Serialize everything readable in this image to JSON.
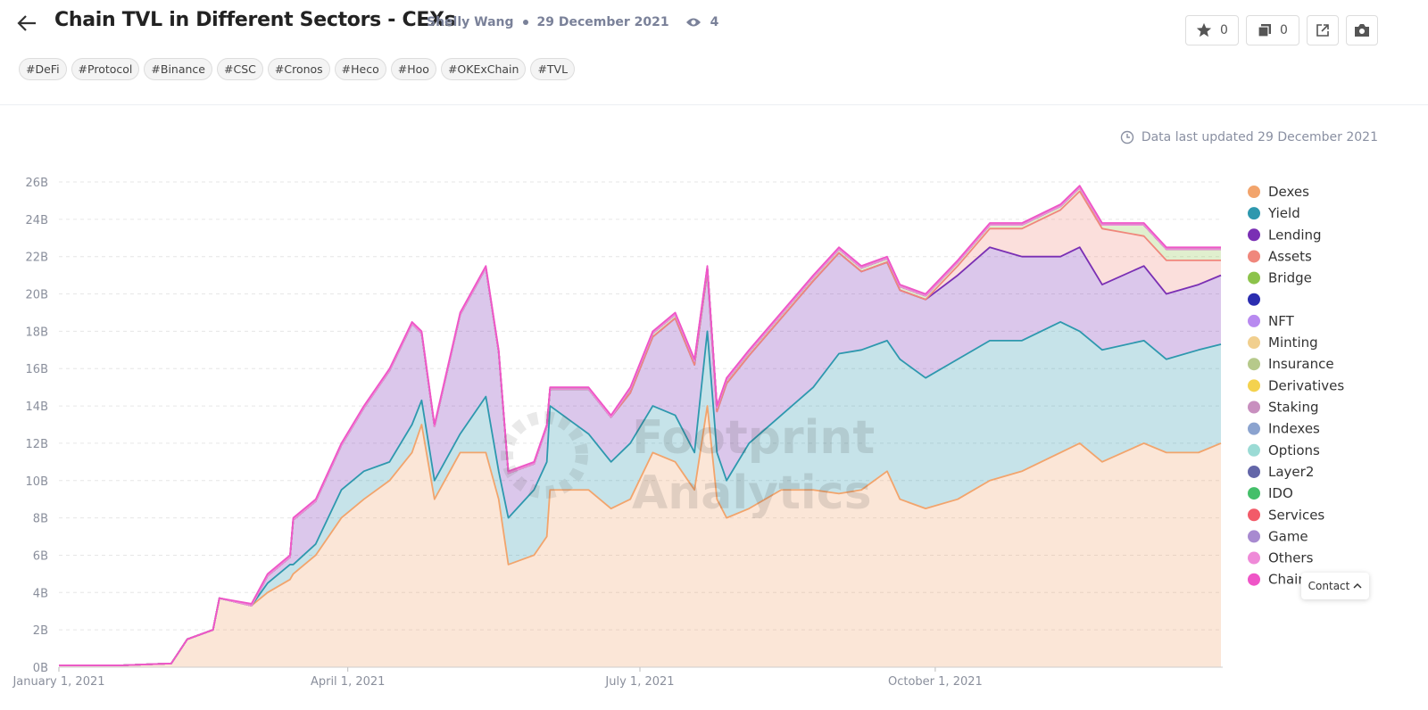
{
  "header": {
    "title": "Chain TVL in Different Sectors - CEXs",
    "author": "Shelly Wang",
    "date": "29 December 2021",
    "views": 4,
    "tags": [
      "#DeFi",
      "#Protocol",
      "#Binance",
      "#CSC",
      "#Cronos",
      "#Heco",
      "#Hoo",
      "#OKExChain",
      "#TVL"
    ],
    "stars": 0,
    "copies": 0
  },
  "updated_note": "Data last updated 29 December 2021",
  "watermark": [
    "Footprint",
    "Analytics"
  ],
  "contact": "Contact",
  "chart_data": {
    "type": "stacked-area",
    "x": [
      "2021-01-01",
      "2021-01-21",
      "2021-02-05",
      "2021-02-10",
      "2021-02-18",
      "2021-02-20",
      "2021-03-02",
      "2021-03-07",
      "2021-03-14",
      "2021-03-15",
      "2021-03-22",
      "2021-03-30",
      "2021-04-06",
      "2021-04-14",
      "2021-04-21",
      "2021-04-24",
      "2021-04-28",
      "2021-05-06",
      "2021-05-14",
      "2021-05-18",
      "2021-05-21",
      "2021-05-29",
      "2021-06-02",
      "2021-06-03",
      "2021-06-15",
      "2021-06-22",
      "2021-06-28",
      "2021-07-05",
      "2021-07-12",
      "2021-07-18",
      "2021-07-22",
      "2021-07-25",
      "2021-07-28",
      "2021-08-04",
      "2021-08-14",
      "2021-08-24",
      "2021-09-01",
      "2021-09-08",
      "2021-09-16",
      "2021-09-20",
      "2021-09-28",
      "2021-10-08",
      "2021-10-18",
      "2021-10-28",
      "2021-11-09",
      "2021-11-15",
      "2021-11-22",
      "2021-12-05",
      "2021-12-12",
      "2021-12-22",
      "2021-12-29"
    ],
    "xlim": [
      "2021-01-01",
      "2021-12-29"
    ],
    "xticks": [
      {
        "value": "2021-01-01",
        "label": "January 1, 2021"
      },
      {
        "value": "2021-04-01",
        "label": "April 1, 2021"
      },
      {
        "value": "2021-07-01",
        "label": "July 1, 2021"
      },
      {
        "value": "2021-10-01",
        "label": "October 1, 2021"
      }
    ],
    "ylim": [
      0,
      26
    ],
    "yticks": [
      {
        "value": 0,
        "label": "0B"
      },
      {
        "value": 2,
        "label": "2B"
      },
      {
        "value": 4,
        "label": "4B"
      },
      {
        "value": 6,
        "label": "6B"
      },
      {
        "value": 8,
        "label": "8B"
      },
      {
        "value": 10,
        "label": "10B"
      },
      {
        "value": 12,
        "label": "12B"
      },
      {
        "value": 14,
        "label": "14B"
      },
      {
        "value": 16,
        "label": "16B"
      },
      {
        "value": 18,
        "label": "18B"
      },
      {
        "value": 20,
        "label": "20B"
      },
      {
        "value": 22,
        "label": "22B"
      },
      {
        "value": 24,
        "label": "24B"
      },
      {
        "value": 26,
        "label": "26B"
      }
    ],
    "grid": true,
    "legend": "right",
    "series": [
      {
        "name": "Dexes",
        "color": "#f2a46c",
        "values": [
          0.1,
          0.1,
          0.2,
          1.5,
          2.0,
          3.7,
          3.3,
          4.0,
          4.7,
          5.0,
          6.0,
          8.0,
          9.0,
          10.0,
          11.5,
          13.0,
          9.0,
          11.5,
          11.5,
          9.0,
          5.5,
          6.0,
          7.0,
          9.5,
          9.5,
          8.5,
          9.0,
          11.5,
          11.0,
          9.5,
          14.0,
          9.0,
          8.0,
          8.5,
          9.5,
          9.5,
          9.3,
          9.5,
          10.5,
          9.0,
          8.5,
          9.0,
          10.0,
          10.5,
          11.5,
          12.0,
          11.0,
          12.0,
          11.5,
          11.5,
          12.0
        ]
      },
      {
        "name": "Yield",
        "color": "#2e98ae",
        "values": [
          0,
          0,
          0,
          0,
          0,
          0,
          0,
          0.5,
          0.8,
          0.5,
          0.6,
          1.5,
          1.5,
          1.0,
          1.5,
          1.3,
          1.0,
          1.0,
          3.0,
          1.5,
          2.5,
          3.5,
          4.0,
          4.5,
          3.0,
          2.5,
          3.0,
          2.5,
          2.5,
          2.0,
          4.0,
          2.5,
          2.0,
          3.5,
          4.0,
          5.5,
          7.5,
          7.5,
          7.0,
          7.5,
          7.0,
          7.5,
          7.5,
          7.0,
          7.0,
          6.0,
          6.0,
          5.5,
          5.0,
          5.5,
          5.3
        ]
      },
      {
        "name": "Lending",
        "color": "#7a2fb4",
        "values": [
          0,
          0,
          0,
          0,
          0,
          0,
          0,
          0.4,
          0.4,
          2.4,
          2.3,
          2.4,
          3.4,
          4.9,
          5.4,
          3.6,
          2.9,
          6.4,
          6.9,
          6.4,
          2.4,
          1.4,
          1.9,
          0.9,
          2.4,
          2.4,
          2.7,
          3.7,
          5.2,
          4.7,
          3.2,
          2.2,
          5.2,
          4.7,
          5.2,
          5.7,
          5.4,
          4.2,
          4.2,
          3.7,
          4.2,
          4.5,
          5.0,
          4.5,
          3.5,
          4.5,
          3.5,
          4.0,
          3.5,
          3.5,
          3.7
        ]
      },
      {
        "name": "Assets",
        "color": "#f0877c",
        "values": [
          0,
          0,
          0,
          0,
          0,
          0,
          0,
          0,
          0,
          0,
          0,
          0,
          0,
          0,
          0,
          0,
          0,
          0,
          0,
          0,
          0,
          0,
          0,
          0,
          0,
          0,
          0,
          0,
          0,
          0,
          0,
          0,
          0,
          0,
          0,
          0,
          0,
          0,
          0,
          0,
          0,
          0.5,
          1.0,
          1.5,
          2.5,
          3.0,
          3.0,
          1.6,
          1.8,
          1.3,
          0.8
        ]
      },
      {
        "name": "Bridge",
        "color": "#8cc34b",
        "values": [
          0,
          0,
          0,
          0,
          0,
          0,
          0,
          0,
          0,
          0,
          0,
          0,
          0,
          0,
          0,
          0,
          0,
          0,
          0,
          0,
          0,
          0,
          0,
          0,
          0,
          0,
          0.2,
          0.2,
          0.2,
          0.2,
          0.2,
          0.2,
          0.2,
          0.2,
          0.2,
          0.2,
          0.2,
          0.2,
          0.2,
          0.2,
          0.2,
          0.2,
          0.2,
          0.2,
          0.2,
          0.2,
          0.2,
          0.6,
          0.6,
          0.6,
          0.6
        ]
      },
      {
        "name": null,
        "color": "#2b2db0",
        "values": [
          0,
          0,
          0,
          0,
          0,
          0,
          0,
          0,
          0,
          0,
          0,
          0,
          0,
          0,
          0,
          0,
          0,
          0,
          0,
          0,
          0,
          0,
          0,
          0,
          0,
          0,
          0,
          0,
          0,
          0,
          0,
          0,
          0,
          0,
          0,
          0,
          0,
          0,
          0,
          0,
          0,
          0,
          0,
          0,
          0,
          0,
          0,
          0,
          0,
          0,
          0
        ]
      },
      {
        "name": "NFT",
        "color": "#b88af0",
        "values": [
          0,
          0,
          0,
          0,
          0,
          0,
          0,
          0,
          0,
          0,
          0,
          0,
          0,
          0,
          0,
          0,
          0,
          0,
          0,
          0,
          0,
          0,
          0,
          0,
          0,
          0,
          0,
          0,
          0,
          0,
          0,
          0,
          0,
          0,
          0,
          0,
          0,
          0,
          0,
          0,
          0,
          0,
          0,
          0,
          0,
          0,
          0,
          0,
          0,
          0,
          0
        ]
      },
      {
        "name": "Minting",
        "color": "#f1cf8e",
        "values": [
          0,
          0,
          0,
          0,
          0,
          0,
          0,
          0,
          0,
          0,
          0,
          0,
          0,
          0,
          0,
          0,
          0,
          0,
          0,
          0,
          0,
          0,
          0,
          0,
          0,
          0,
          0,
          0,
          0,
          0,
          0,
          0,
          0,
          0,
          0,
          0,
          0,
          0,
          0,
          0,
          0,
          0,
          0,
          0,
          0,
          0,
          0,
          0,
          0,
          0,
          0
        ]
      },
      {
        "name": "Insurance",
        "color": "#b6c98b",
        "values": [
          0,
          0,
          0,
          0,
          0,
          0,
          0,
          0,
          0,
          0,
          0,
          0,
          0,
          0,
          0,
          0,
          0,
          0,
          0,
          0,
          0,
          0,
          0,
          0,
          0,
          0,
          0,
          0,
          0,
          0,
          0,
          0,
          0,
          0,
          0,
          0,
          0,
          0,
          0,
          0,
          0,
          0,
          0,
          0,
          0,
          0,
          0,
          0,
          0,
          0,
          0
        ]
      },
      {
        "name": "Derivatives",
        "color": "#f4d24e",
        "values": [
          0,
          0,
          0,
          0,
          0,
          0,
          0,
          0,
          0,
          0,
          0,
          0,
          0,
          0,
          0,
          0,
          0,
          0,
          0,
          0,
          0,
          0,
          0,
          0,
          0,
          0,
          0,
          0,
          0,
          0,
          0,
          0,
          0,
          0,
          0,
          0,
          0,
          0,
          0,
          0,
          0,
          0,
          0,
          0,
          0,
          0,
          0,
          0,
          0,
          0,
          0
        ]
      },
      {
        "name": "Staking",
        "color": "#c88fbf",
        "values": [
          0,
          0,
          0,
          0,
          0,
          0,
          0,
          0,
          0,
          0,
          0,
          0,
          0,
          0,
          0,
          0,
          0,
          0,
          0,
          0,
          0,
          0,
          0,
          0,
          0,
          0,
          0,
          0,
          0,
          0,
          0,
          0,
          0,
          0,
          0,
          0,
          0,
          0,
          0,
          0,
          0,
          0,
          0,
          0,
          0,
          0,
          0,
          0,
          0,
          0,
          0
        ]
      },
      {
        "name": "Indexes",
        "color": "#8ba3cf",
        "values": [
          0,
          0,
          0,
          0,
          0,
          0,
          0,
          0,
          0,
          0,
          0,
          0,
          0,
          0,
          0,
          0,
          0,
          0,
          0,
          0,
          0,
          0,
          0,
          0,
          0,
          0,
          0,
          0,
          0,
          0,
          0,
          0,
          0,
          0,
          0,
          0,
          0,
          0,
          0,
          0,
          0,
          0,
          0,
          0,
          0,
          0,
          0,
          0,
          0,
          0,
          0
        ]
      },
      {
        "name": "Options",
        "color": "#9bdbd5",
        "values": [
          0,
          0,
          0,
          0,
          0,
          0,
          0,
          0,
          0,
          0,
          0,
          0,
          0,
          0,
          0,
          0,
          0,
          0,
          0,
          0,
          0,
          0,
          0,
          0,
          0,
          0,
          0,
          0,
          0,
          0,
          0,
          0,
          0,
          0,
          0,
          0,
          0,
          0,
          0,
          0,
          0,
          0,
          0,
          0,
          0,
          0,
          0,
          0,
          0,
          0,
          0
        ]
      },
      {
        "name": "Layer2",
        "color": "#6366a8",
        "values": [
          0,
          0,
          0,
          0,
          0,
          0,
          0,
          0,
          0,
          0,
          0,
          0,
          0,
          0,
          0,
          0,
          0,
          0,
          0,
          0,
          0,
          0,
          0,
          0,
          0,
          0,
          0,
          0,
          0,
          0,
          0,
          0,
          0,
          0,
          0,
          0,
          0,
          0,
          0,
          0,
          0,
          0,
          0,
          0,
          0,
          0,
          0,
          0,
          0,
          0,
          0
        ]
      },
      {
        "name": "IDO",
        "color": "#44bf6a",
        "values": [
          0,
          0,
          0,
          0,
          0,
          0,
          0,
          0,
          0,
          0,
          0,
          0,
          0,
          0,
          0,
          0,
          0,
          0,
          0,
          0,
          0,
          0,
          0,
          0,
          0,
          0,
          0,
          0,
          0,
          0,
          0,
          0,
          0,
          0,
          0,
          0,
          0,
          0,
          0,
          0,
          0,
          0,
          0,
          0,
          0,
          0,
          0,
          0,
          0,
          0,
          0
        ]
      },
      {
        "name": "Services",
        "color": "#f25b69",
        "values": [
          0,
          0,
          0,
          0,
          0,
          0,
          0,
          0,
          0,
          0,
          0,
          0,
          0,
          0,
          0,
          0,
          0,
          0,
          0,
          0,
          0,
          0,
          0,
          0,
          0,
          0,
          0,
          0,
          0,
          0,
          0,
          0,
          0,
          0,
          0,
          0,
          0,
          0,
          0,
          0,
          0,
          0,
          0,
          0,
          0,
          0,
          0,
          0,
          0,
          0,
          0
        ]
      },
      {
        "name": "Game",
        "color": "#a88ad0",
        "values": [
          0,
          0,
          0,
          0,
          0,
          0,
          0,
          0,
          0,
          0,
          0,
          0,
          0,
          0,
          0,
          0,
          0,
          0,
          0,
          0,
          0,
          0,
          0,
          0,
          0,
          0,
          0,
          0,
          0,
          0,
          0,
          0,
          0,
          0,
          0,
          0,
          0,
          0,
          0,
          0,
          0,
          0,
          0,
          0,
          0,
          0,
          0,
          0,
          0,
          0,
          0
        ]
      },
      {
        "name": "Others",
        "color": "#ef8ad8",
        "values": [
          0,
          0,
          0,
          0,
          0,
          0,
          0,
          0,
          0,
          0,
          0,
          0,
          0,
          0,
          0,
          0,
          0,
          0,
          0,
          0,
          0,
          0,
          0,
          0,
          0,
          0,
          0,
          0,
          0,
          0,
          0,
          0,
          0,
          0,
          0,
          0,
          0,
          0,
          0,
          0,
          0,
          0,
          0,
          0,
          0,
          0,
          0,
          0,
          0,
          0,
          0
        ]
      },
      {
        "name": "Chain",
        "color": "#ef55c7",
        "values": [
          0,
          0,
          0,
          0,
          0,
          0,
          0.1,
          0.1,
          0.1,
          0.1,
          0.1,
          0.1,
          0.1,
          0.1,
          0.1,
          0.1,
          0.1,
          0.1,
          0.1,
          0.1,
          0.1,
          0.1,
          0.1,
          0.1,
          0.1,
          0.1,
          0.1,
          0.1,
          0.1,
          0.1,
          0.1,
          0.1,
          0.1,
          0.1,
          0.1,
          0.1,
          0.1,
          0.1,
          0.1,
          0.1,
          0.1,
          0.1,
          0.1,
          0.1,
          0.1,
          0.1,
          0.1,
          0.1,
          0.1,
          0.1,
          0.1
        ]
      }
    ]
  }
}
